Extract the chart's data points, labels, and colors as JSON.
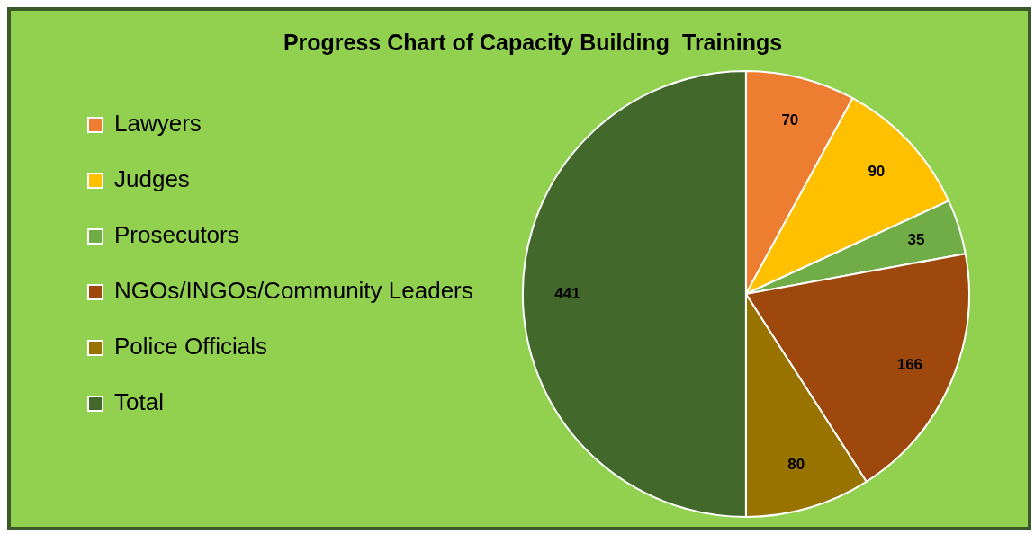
{
  "chart_data": {
    "type": "pie",
    "title": "Progress Chart of Capacity Building  Trainings",
    "categories": [
      "Lawyers",
      "Judges",
      "Prosecutors",
      "NGOs/INGOs/Community Leaders",
      "Police Officials",
      "Total"
    ],
    "values": [
      70,
      90,
      35,
      166,
      80,
      441
    ],
    "colors": [
      "#ed7d31",
      "#ffc000",
      "#70ad47",
      "#9e480e",
      "#997300",
      "#43682b"
    ],
    "data_labels": true,
    "legend": "left"
  }
}
